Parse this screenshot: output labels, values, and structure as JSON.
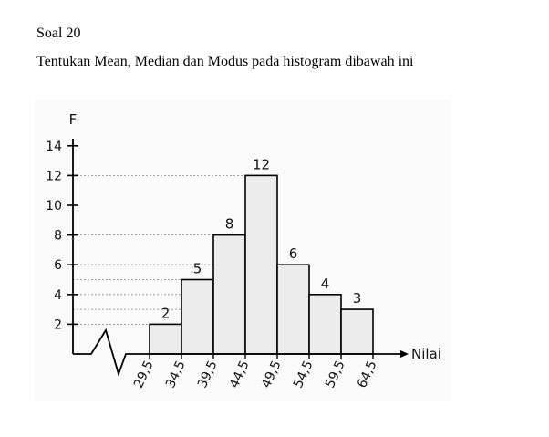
{
  "document": {
    "heading": "Soal 20",
    "instruction": "Tentukan Mean, Median dan Modus pada histogram dibawah ini"
  },
  "chart_data": {
    "type": "bar",
    "ylabel": "F",
    "xlabel": "Nilai",
    "ylim": [
      0,
      14
    ],
    "yticks": [
      2,
      4,
      6,
      8,
      10,
      12,
      14
    ],
    "bin_edges": [
      "29,5",
      "34,5",
      "39,5",
      "44,5",
      "49,5",
      "54,5",
      "59,5",
      "64,5"
    ],
    "values": [
      2,
      5,
      8,
      12,
      6,
      4,
      3
    ],
    "bar_fill": "#ececec",
    "bar_stroke": "#000000",
    "gridlines": "dotted",
    "axis_break": true
  }
}
